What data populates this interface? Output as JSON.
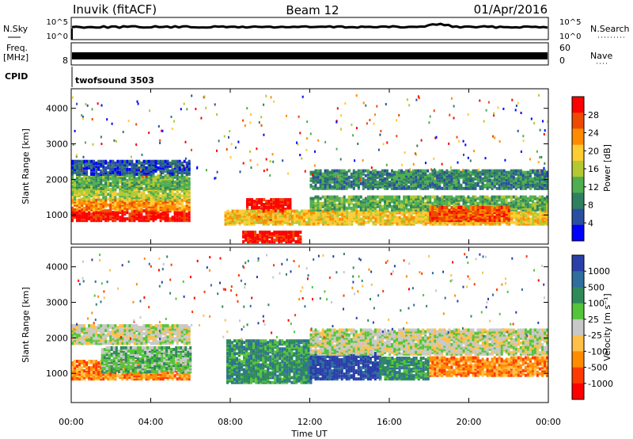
{
  "header": {
    "station": "Inuvik (fitACF)",
    "beam": "Beam 12",
    "date": "01/Apr/2016"
  },
  "panels": {
    "nsky": {
      "label": "N.Sky",
      "right_label": "N.Search",
      "ticks": [
        "10^5",
        "10^0"
      ]
    },
    "freq": {
      "label_1": "Freq.",
      "label_2": "[MHz]",
      "left_tick": "8",
      "right_ticks": [
        "60",
        "0"
      ],
      "right_label": "Nave"
    },
    "cpid": {
      "label": "CPID",
      "program": "twofsound 3503"
    }
  },
  "chart_data": [
    {
      "type": "heatmap",
      "name": "power",
      "ylabel": "Slant Range [km]",
      "colorbar_label": "Power [dB]",
      "colorbar_ticks": [
        "28",
        "24",
        "20",
        "16",
        "12",
        "8",
        "4"
      ],
      "colors": [
        "#ff0000",
        "#ee4a00",
        "#ff8c00",
        "#ffcc33",
        "#b4c832",
        "#4fae4f",
        "#2f8060",
        "#2a4fa0",
        "#0000ff"
      ],
      "yticks": [
        1000,
        2000,
        3000,
        4000
      ],
      "ylim": [
        180,
        4550
      ],
      "xlim": [
        0,
        24
      ],
      "bands": [
        {
          "t0": 0.0,
          "t1": 6.0,
          "r0": 800,
          "r1": 1100,
          "level": 0
        },
        {
          "t0": 0.0,
          "t1": 6.0,
          "r0": 1100,
          "r1": 1400,
          "level": 2
        },
        {
          "t0": 0.0,
          "t1": 6.0,
          "r0": 1400,
          "r1": 1700,
          "level": 4
        },
        {
          "t0": 0.0,
          "t1": 6.0,
          "r0": 1700,
          "r1": 2100,
          "level": 5
        },
        {
          "t0": 0.0,
          "t1": 6.0,
          "r0": 2100,
          "r1": 2500,
          "level": 7
        },
        {
          "t0": 8.6,
          "t1": 11.5,
          "r0": 200,
          "r1": 500,
          "level": 0
        },
        {
          "t0": 8.8,
          "t1": 11.0,
          "r0": 800,
          "r1": 1400,
          "level": 0
        },
        {
          "t0": 7.7,
          "t1": 24.0,
          "r0": 700,
          "r1": 1100,
          "level": 3
        },
        {
          "t0": 12.0,
          "t1": 24.0,
          "r0": 1100,
          "r1": 1500,
          "level": 5
        },
        {
          "t0": 12.0,
          "t1": 24.0,
          "r0": 1700,
          "r1": 2200,
          "level": 6
        },
        {
          "t0": 18.0,
          "t1": 22.0,
          "r0": 800,
          "r1": 1200,
          "level": 1
        }
      ]
    },
    {
      "type": "heatmap",
      "name": "velocity",
      "ylabel": "Slant Range [km]",
      "colorbar_label": "Velocity [m s⁻¹]",
      "colorbar_ticks": [
        "1000",
        "500",
        "100",
        "25",
        "-25",
        "-100",
        "-500",
        "-1000"
      ],
      "colors": [
        "#2a3fa8",
        "#2f6e9e",
        "#2f8a5a",
        "#55c43a",
        "#c8c8c8",
        "#ffc04a",
        "#ff8c00",
        "#ff3a00",
        "#ff0000"
      ],
      "yticks": [
        1000,
        2000,
        3000,
        4000
      ],
      "ylim": [
        180,
        4550
      ],
      "xlim": [
        0,
        24
      ],
      "bands": [
        {
          "t0": 0.0,
          "t1": 6.0,
          "r0": 800,
          "r1": 1300,
          "level": 6
        },
        {
          "t0": 1.5,
          "t1": 6.0,
          "r0": 1000,
          "r1": 1700,
          "level": 3
        },
        {
          "t0": 0.0,
          "t1": 6.0,
          "r0": 1800,
          "r1": 2300,
          "level": 4
        },
        {
          "t0": 7.8,
          "t1": 12.0,
          "r0": 700,
          "r1": 1900,
          "level": 2
        },
        {
          "t0": 12.0,
          "t1": 15.5,
          "r0": 800,
          "r1": 1600,
          "level": 0
        },
        {
          "t0": 15.5,
          "t1": 18.0,
          "r0": 800,
          "r1": 1400,
          "level": 2
        },
        {
          "t0": 18.0,
          "t1": 24.0,
          "r0": 900,
          "r1": 1400,
          "level": 6
        },
        {
          "t0": 12.0,
          "t1": 24.0,
          "r0": 1500,
          "r1": 2200,
          "level": 4
        }
      ]
    }
  ],
  "xaxis": {
    "label": "Time UT",
    "ticks": [
      "00:00",
      "04:00",
      "08:00",
      "12:00",
      "16:00",
      "20:00",
      "00:00"
    ]
  }
}
